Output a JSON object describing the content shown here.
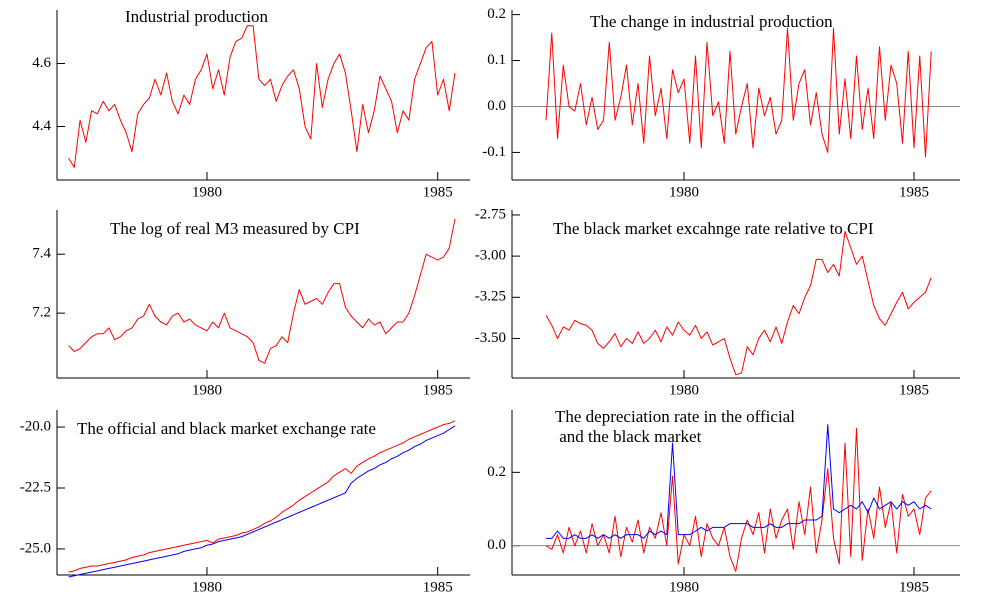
{
  "chart_data": [
    {
      "type": "line",
      "title": [
        "Industrial production"
      ],
      "color": "#ff0000",
      "xlim": [
        1976.75,
        1985.7
      ],
      "xticks": [
        1980,
        1985
      ],
      "ylim": [
        4.23,
        4.77
      ],
      "yticks": [
        4.4,
        4.6
      ],
      "x": [
        1977,
        1977.125,
        1977.25,
        1977.375,
        1977.5,
        1977.625,
        1977.75,
        1977.875,
        1978,
        1978.125,
        1978.25,
        1978.375,
        1978.5,
        1978.625,
        1978.75,
        1978.875,
        1979,
        1979.125,
        1979.25,
        1979.375,
        1979.5,
        1979.625,
        1979.75,
        1979.875,
        1980,
        1980.125,
        1980.25,
        1980.375,
        1980.5,
        1980.625,
        1980.75,
        1980.875,
        1981,
        1981.125,
        1981.25,
        1981.375,
        1981.5,
        1981.625,
        1981.75,
        1981.875,
        1982,
        1982.125,
        1982.25,
        1982.375,
        1982.5,
        1982.625,
        1982.75,
        1982.875,
        1983,
        1983.125,
        1983.25,
        1983.375,
        1983.5,
        1983.625,
        1983.75,
        1983.875,
        1984,
        1984.125,
        1984.25,
        1984.375,
        1984.5,
        1984.625,
        1984.75,
        1984.875,
        1985,
        1985.125,
        1985.25,
        1985.375
      ],
      "values": [
        4.3,
        4.27,
        4.42,
        4.35,
        4.45,
        4.44,
        4.48,
        4.45,
        4.47,
        4.42,
        4.38,
        4.32,
        4.44,
        4.47,
        4.49,
        4.55,
        4.5,
        4.57,
        4.48,
        4.44,
        4.5,
        4.47,
        4.55,
        4.58,
        4.63,
        4.52,
        4.58,
        4.5,
        4.62,
        4.67,
        4.68,
        4.72,
        4.72,
        4.55,
        4.53,
        4.55,
        4.48,
        4.53,
        4.56,
        4.58,
        4.52,
        4.4,
        4.36,
        4.6,
        4.46,
        4.55,
        4.6,
        4.63,
        4.57,
        4.45,
        4.32,
        4.47,
        4.38,
        4.45,
        4.56,
        4.52,
        4.48,
        4.38,
        4.45,
        4.42,
        4.55,
        4.6,
        4.65,
        4.67,
        4.5,
        4.55,
        4.45,
        4.57
      ]
    },
    {
      "type": "line",
      "title": [
        "The change in industrial production"
      ],
      "color": "#ff0000",
      "zero_line": true,
      "xlim": [
        1976.26,
        1986.0
      ],
      "xticks": [
        1980,
        1985
      ],
      "ylim": [
        -0.16,
        0.21
      ],
      "yticks": [
        -0.1,
        {
          "value": 0,
          "label": "0.0"
        },
        0.1,
        0.2
      ],
      "x": [
        1977,
        1977.125,
        1977.25,
        1977.375,
        1977.5,
        1977.625,
        1977.75,
        1977.875,
        1978,
        1978.125,
        1978.25,
        1978.375,
        1978.5,
        1978.625,
        1978.75,
        1978.875,
        1979,
        1979.125,
        1979.25,
        1979.375,
        1979.5,
        1979.625,
        1979.75,
        1979.875,
        1980,
        1980.125,
        1980.25,
        1980.375,
        1980.5,
        1980.625,
        1980.75,
        1980.875,
        1981,
        1981.125,
        1981.25,
        1981.375,
        1981.5,
        1981.625,
        1981.75,
        1981.875,
        1982,
        1982.125,
        1982.25,
        1982.375,
        1982.5,
        1982.625,
        1982.75,
        1982.875,
        1983,
        1983.125,
        1983.25,
        1983.375,
        1983.5,
        1983.625,
        1983.75,
        1983.875,
        1984,
        1984.125,
        1984.25,
        1984.375,
        1984.5,
        1984.625,
        1984.75,
        1984.875,
        1985,
        1985.125,
        1985.25,
        1985.375
      ],
      "values": [
        -0.03,
        0.16,
        -0.07,
        0.09,
        0.0,
        -0.01,
        0.05,
        -0.04,
        0.02,
        -0.05,
        -0.03,
        0.14,
        -0.03,
        0.02,
        0.09,
        -0.04,
        0.05,
        -0.08,
        0.11,
        -0.02,
        0.04,
        -0.07,
        0.08,
        0.03,
        0.06,
        -0.08,
        0.11,
        -0.09,
        0.14,
        -0.02,
        0.01,
        -0.08,
        0.12,
        -0.06,
        0.0,
        0.05,
        -0.09,
        0.04,
        -0.02,
        0.02,
        -0.06,
        -0.03,
        0.17,
        -0.03,
        0.05,
        0.08,
        -0.04,
        0.03,
        -0.06,
        -0.1,
        0.17,
        -0.06,
        0.06,
        -0.07,
        0.11,
        -0.05,
        0.04,
        -0.07,
        0.13,
        -0.03,
        0.09,
        0.05,
        -0.08,
        0.12,
        -0.09,
        0.11,
        -0.11,
        0.12
      ]
    },
    {
      "type": "line",
      "title": [
        "The log of real M3 measured by CPI"
      ],
      "color": "#ff0000",
      "xlim": [
        1976.75,
        1985.7
      ],
      "xticks": [
        1980,
        1985
      ],
      "ylim": [
        6.98,
        7.55
      ],
      "yticks": [
        7.2,
        7.4
      ],
      "x": [
        1977,
        1977.125,
        1977.25,
        1977.375,
        1977.5,
        1977.625,
        1977.75,
        1977.875,
        1978,
        1978.125,
        1978.25,
        1978.375,
        1978.5,
        1978.625,
        1978.75,
        1978.875,
        1979,
        1979.125,
        1979.25,
        1979.375,
        1979.5,
        1979.625,
        1979.75,
        1979.875,
        1980,
        1980.125,
        1980.25,
        1980.375,
        1980.5,
        1980.625,
        1980.75,
        1980.875,
        1981,
        1981.125,
        1981.25,
        1981.375,
        1981.5,
        1981.625,
        1981.75,
        1981.875,
        1982,
        1982.125,
        1982.25,
        1982.375,
        1982.5,
        1982.625,
        1982.75,
        1982.875,
        1983,
        1983.125,
        1983.25,
        1983.375,
        1983.5,
        1983.625,
        1983.75,
        1983.875,
        1984,
        1984.125,
        1984.25,
        1984.375,
        1984.5,
        1984.625,
        1984.75,
        1984.875,
        1985,
        1985.125,
        1985.25,
        1985.375
      ],
      "values": [
        7.09,
        7.07,
        7.08,
        7.1,
        7.12,
        7.13,
        7.13,
        7.15,
        7.11,
        7.12,
        7.14,
        7.15,
        7.18,
        7.19,
        7.23,
        7.19,
        7.17,
        7.16,
        7.19,
        7.2,
        7.17,
        7.18,
        7.16,
        7.15,
        7.14,
        7.17,
        7.15,
        7.2,
        7.15,
        7.14,
        7.13,
        7.12,
        7.1,
        7.04,
        7.03,
        7.08,
        7.09,
        7.12,
        7.1,
        7.2,
        7.28,
        7.23,
        7.24,
        7.25,
        7.23,
        7.27,
        7.3,
        7.3,
        7.22,
        7.19,
        7.17,
        7.15,
        7.18,
        7.16,
        7.17,
        7.13,
        7.15,
        7.17,
        7.17,
        7.2,
        7.26,
        7.33,
        7.4,
        7.39,
        7.38,
        7.39,
        7.42,
        7.52
      ]
    },
    {
      "type": "line",
      "title": [
        "The black market excahnge rate relative to CPI"
      ],
      "color": "#ff0000",
      "xlim": [
        1976.26,
        1986.0
      ],
      "xticks": [
        1980,
        1985
      ],
      "ylim": [
        -3.74,
        -2.72
      ],
      "yticks": [
        {
          "value": -3.5,
          "label": "-3.50"
        },
        -3.25,
        {
          "value": -3,
          "label": "-3.00"
        },
        -2.75
      ],
      "x": [
        1977,
        1977.125,
        1977.25,
        1977.375,
        1977.5,
        1977.625,
        1977.75,
        1977.875,
        1978,
        1978.125,
        1978.25,
        1978.375,
        1978.5,
        1978.625,
        1978.75,
        1978.875,
        1979,
        1979.125,
        1979.25,
        1979.375,
        1979.5,
        1979.625,
        1979.75,
        1979.875,
        1980,
        1980.125,
        1980.25,
        1980.375,
        1980.5,
        1980.625,
        1980.75,
        1980.875,
        1981,
        1981.125,
        1981.25,
        1981.375,
        1981.5,
        1981.625,
        1981.75,
        1981.875,
        1982,
        1982.125,
        1982.25,
        1982.375,
        1982.5,
        1982.625,
        1982.75,
        1982.875,
        1983,
        1983.125,
        1983.25,
        1983.375,
        1983.5,
        1983.625,
        1983.75,
        1983.875,
        1984,
        1984.125,
        1984.25,
        1984.375,
        1984.5,
        1984.625,
        1984.75,
        1984.875,
        1985,
        1985.125,
        1985.25,
        1985.375
      ],
      "values": [
        -3.36,
        -3.42,
        -3.5,
        -3.43,
        -3.45,
        -3.39,
        -3.41,
        -3.42,
        -3.45,
        -3.53,
        -3.56,
        -3.52,
        -3.47,
        -3.55,
        -3.5,
        -3.53,
        -3.46,
        -3.53,
        -3.5,
        -3.45,
        -3.52,
        -3.43,
        -3.48,
        -3.4,
        -3.45,
        -3.48,
        -3.42,
        -3.5,
        -3.46,
        -3.54,
        -3.52,
        -3.5,
        -3.62,
        -3.72,
        -3.71,
        -3.55,
        -3.6,
        -3.5,
        -3.45,
        -3.52,
        -3.43,
        -3.53,
        -3.4,
        -3.3,
        -3.35,
        -3.25,
        -3.18,
        -3.02,
        -3.02,
        -3.1,
        -3.05,
        -3.12,
        -2.85,
        -2.95,
        -3.05,
        -3.0,
        -3.15,
        -3.3,
        -3.38,
        -3.42,
        -3.35,
        -3.28,
        -3.22,
        -3.32,
        -3.28,
        -3.25,
        -3.22,
        -3.13
      ]
    },
    {
      "type": "line",
      "title": [
        "The official and black market exchange rate"
      ],
      "xlim": [
        1976.75,
        1985.7
      ],
      "xticks": [
        1980,
        1985
      ],
      "ylim": [
        -26.07,
        -19.3
      ],
      "yticks": [
        {
          "value": -25,
          "label": "-25.0"
        },
        -22.5,
        {
          "value": -20,
          "label": "-20.0"
        }
      ],
      "x": [
        1977,
        1977.125,
        1977.25,
        1977.375,
        1977.5,
        1977.625,
        1977.75,
        1977.875,
        1978,
        1978.125,
        1978.25,
        1978.375,
        1978.5,
        1978.625,
        1978.75,
        1978.875,
        1979,
        1979.125,
        1979.25,
        1979.375,
        1979.5,
        1979.625,
        1979.75,
        1979.875,
        1980,
        1980.125,
        1980.25,
        1980.375,
        1980.5,
        1980.625,
        1980.75,
        1980.875,
        1981,
        1981.125,
        1981.25,
        1981.375,
        1981.5,
        1981.625,
        1981.75,
        1981.875,
        1982,
        1982.125,
        1982.25,
        1982.375,
        1982.5,
        1982.625,
        1982.75,
        1982.875,
        1983,
        1983.125,
        1983.25,
        1983.375,
        1983.5,
        1983.625,
        1983.75,
        1983.875,
        1984,
        1984.125,
        1984.25,
        1984.375,
        1984.5,
        1984.625,
        1984.75,
        1984.875,
        1985,
        1985.125,
        1985.25,
        1985.375
      ],
      "series": [
        {
          "color": "#ff0000",
          "values": [
            -25.95,
            -25.9,
            -25.8,
            -25.75,
            -25.7,
            -25.7,
            -25.65,
            -25.6,
            -25.55,
            -25.5,
            -25.45,
            -25.35,
            -25.3,
            -25.25,
            -25.15,
            -25.1,
            -25.05,
            -25.0,
            -24.95,
            -24.9,
            -24.85,
            -24.8,
            -24.75,
            -24.7,
            -24.65,
            -24.75,
            -24.6,
            -24.55,
            -24.5,
            -24.45,
            -24.35,
            -24.3,
            -24.2,
            -24.1,
            -23.95,
            -23.85,
            -23.7,
            -23.5,
            -23.35,
            -23.2,
            -23.0,
            -22.85,
            -22.7,
            -22.55,
            -22.4,
            -22.25,
            -22.0,
            -21.85,
            -21.7,
            -21.9,
            -21.6,
            -21.45,
            -21.3,
            -21.2,
            -21.05,
            -20.95,
            -20.85,
            -20.75,
            -20.65,
            -20.5,
            -20.4,
            -20.3,
            -20.2,
            -20.1,
            -20.0,
            -19.9,
            -19.85,
            -19.75
          ]
        },
        {
          "color": "#0000ff",
          "values": [
            -26.15,
            -26.1,
            -26.05,
            -26.0,
            -25.95,
            -25.9,
            -25.85,
            -25.8,
            -25.75,
            -25.7,
            -25.65,
            -25.6,
            -25.55,
            -25.5,
            -25.45,
            -25.4,
            -25.35,
            -25.3,
            -25.25,
            -25.2,
            -25.1,
            -25.05,
            -25.0,
            -24.95,
            -24.85,
            -24.8,
            -24.7,
            -24.65,
            -24.6,
            -24.55,
            -24.5,
            -24.4,
            -24.3,
            -24.2,
            -24.1,
            -24.0,
            -23.9,
            -23.8,
            -23.7,
            -23.6,
            -23.5,
            -23.4,
            -23.3,
            -23.2,
            -23.1,
            -23.0,
            -22.9,
            -22.8,
            -22.7,
            -22.3,
            -22.1,
            -21.95,
            -21.8,
            -21.7,
            -21.55,
            -21.45,
            -21.3,
            -21.2,
            -21.05,
            -20.95,
            -20.8,
            -20.7,
            -20.55,
            -20.45,
            -20.35,
            -20.25,
            -20.1,
            -19.95
          ]
        }
      ]
    },
    {
      "type": "line",
      "title": [
        "The depreciation rate in the official",
        " and the black market"
      ],
      "zero_line": true,
      "xlim": [
        1976.26,
        1986.0
      ],
      "xticks": [
        1980,
        1985
      ],
      "ylim": [
        -0.08,
        0.37
      ],
      "yticks": [
        {
          "value": 0,
          "label": "0.0"
        },
        0.2
      ],
      "x": [
        1977,
        1977.125,
        1977.25,
        1977.375,
        1977.5,
        1977.625,
        1977.75,
        1977.875,
        1978,
        1978.125,
        1978.25,
        1978.375,
        1978.5,
        1978.625,
        1978.75,
        1978.875,
        1979,
        1979.125,
        1979.25,
        1979.375,
        1979.5,
        1979.625,
        1979.75,
        1979.875,
        1980,
        1980.125,
        1980.25,
        1980.375,
        1980.5,
        1980.625,
        1980.75,
        1980.875,
        1981,
        1981.125,
        1981.25,
        1981.375,
        1981.5,
        1981.625,
        1981.75,
        1981.875,
        1982,
        1982.125,
        1982.25,
        1982.375,
        1982.5,
        1982.625,
        1982.75,
        1982.875,
        1983,
        1983.125,
        1983.25,
        1983.375,
        1983.5,
        1983.625,
        1983.75,
        1983.875,
        1984,
        1984.125,
        1984.25,
        1984.375,
        1984.5,
        1984.625,
        1984.75,
        1984.875,
        1985,
        1985.125,
        1985.25,
        1985.375
      ],
      "series": [
        {
          "color": "#ff0000",
          "values": [
            0.0,
            -0.01,
            0.03,
            -0.02,
            0.05,
            0.0,
            0.04,
            -0.02,
            0.06,
            0.0,
            0.03,
            -0.02,
            0.08,
            -0.03,
            0.05,
            0.01,
            0.07,
            -0.02,
            0.05,
            0.02,
            0.09,
            0.0,
            0.19,
            -0.05,
            0.03,
            0.0,
            0.08,
            -0.03,
            0.06,
            0.02,
            0.0,
            0.05,
            -0.03,
            -0.07,
            0.02,
            0.07,
            0.03,
            0.09,
            -0.02,
            0.1,
            0.02,
            0.07,
            0.1,
            -0.01,
            0.12,
            0.03,
            0.16,
            -0.02,
            0.07,
            0.21,
            0.02,
            -0.05,
            0.28,
            -0.03,
            0.32,
            -0.04,
            0.1,
            0.02,
            0.16,
            0.05,
            0.12,
            -0.02,
            0.14,
            0.08,
            0.1,
            0.03,
            0.13,
            0.15
          ]
        },
        {
          "color": "#0000ff",
          "values": [
            0.02,
            0.02,
            0.04,
            0.02,
            0.02,
            0.03,
            0.02,
            0.02,
            0.03,
            0.02,
            0.03,
            0.02,
            0.03,
            0.02,
            0.03,
            0.03,
            0.03,
            0.02,
            0.04,
            0.03,
            0.04,
            0.03,
            0.28,
            0.03,
            0.03,
            0.03,
            0.04,
            0.05,
            0.04,
            0.05,
            0.05,
            0.05,
            0.06,
            0.06,
            0.06,
            0.06,
            0.05,
            0.05,
            0.05,
            0.06,
            0.05,
            0.05,
            0.06,
            0.06,
            0.06,
            0.07,
            0.07,
            0.07,
            0.08,
            0.33,
            0.1,
            0.09,
            0.1,
            0.11,
            0.1,
            0.12,
            0.09,
            0.13,
            0.1,
            0.11,
            0.12,
            0.1,
            0.12,
            0.11,
            0.12,
            0.1,
            0.11,
            0.1
          ]
        }
      ]
    }
  ]
}
